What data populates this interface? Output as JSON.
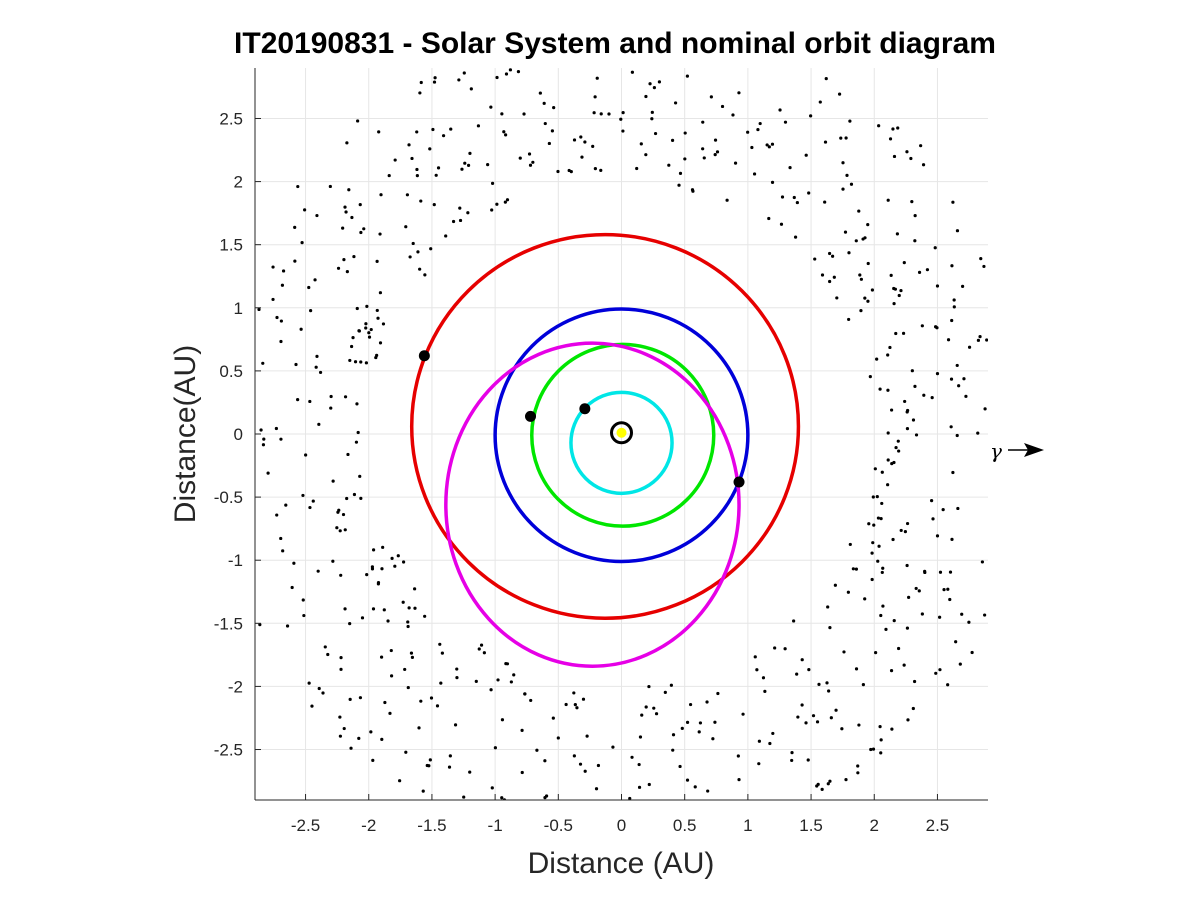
{
  "chart_data": {
    "type": "scatter",
    "title": "IT20190831 - Solar System and nominal orbit diagram",
    "xlabel": "Distance (AU)",
    "ylabel": "Distance(AU)",
    "xlim": [
      -2.9,
      2.9
    ],
    "ylim": [
      -2.9,
      2.9
    ],
    "xticks": [
      -2.5,
      -2,
      -1.5,
      -1,
      -0.5,
      0,
      0.5,
      1,
      1.5,
      2,
      2.5
    ],
    "yticks": [
      -2.5,
      -2,
      -1.5,
      -1,
      -0.5,
      0,
      0.5,
      1,
      1.5,
      2,
      2.5
    ],
    "tick_labels": [
      "-2.5",
      "-2",
      "-1.5",
      "-1",
      "-0.5",
      "0",
      "0.5",
      "1",
      "1.5",
      "2",
      "2.5"
    ],
    "grid": true,
    "vernal_equinox_label": "γ",
    "orbits": [
      {
        "color": "#00e6e6",
        "center": [
          0.0,
          -0.07
        ],
        "rx": 0.4,
        "ry": 0.4
      },
      {
        "color": "#00e600",
        "center": [
          0.01,
          -0.01
        ],
        "rx": 0.72,
        "ry": 0.72
      },
      {
        "color": "#0000d9",
        "center": [
          0.0,
          -0.01
        ],
        "rx": 1.0,
        "ry": 1.0
      },
      {
        "color": "#e60000",
        "center": [
          -0.13,
          0.06
        ],
        "rx": 1.53,
        "ry": 1.52
      },
      {
        "color": "#e600e6",
        "center": [
          -0.23,
          -0.56
        ],
        "rx": 1.16,
        "ry": 1.28
      }
    ],
    "planet_positions": [
      {
        "x": -0.29,
        "y": 0.2
      },
      {
        "x": -0.72,
        "y": 0.14
      },
      {
        "x": 0.93,
        "y": -0.38
      },
      {
        "x": -1.56,
        "y": 0.62
      }
    ],
    "sun": {
      "x": 0.0,
      "y": 0.01
    },
    "asteroid_belt": {
      "inner_radius": 2.0,
      "outer_radius": 3.3,
      "count": 700,
      "note_visible": false
    }
  },
  "colors": {
    "axis": "#262626",
    "grid": "#e6e6e6",
    "sun_fill": "#ffff00",
    "points": "#000000"
  }
}
